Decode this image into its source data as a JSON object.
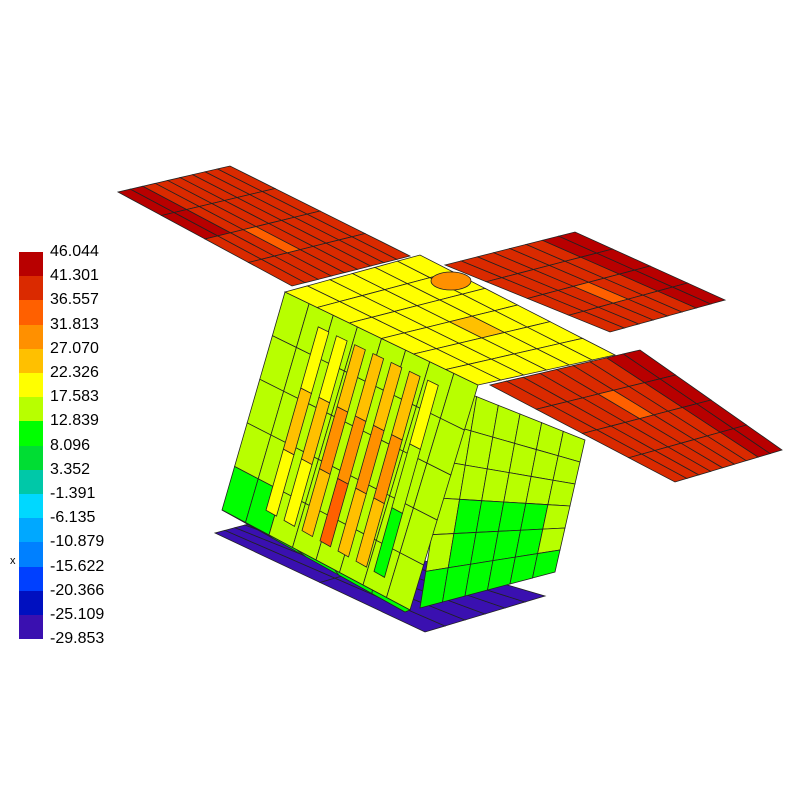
{
  "legend": {
    "labels": [
      "46.044",
      "41.301",
      "36.557",
      "31.813",
      "27.070",
      "22.326",
      "17.583",
      "12.839",
      "8.096",
      "3.352",
      "-1.391",
      "-6.135",
      "-10.879",
      "-15.622",
      "-20.366",
      "-25.109",
      "-29.853"
    ],
    "colors": [
      "#b80000",
      "#da2a00",
      "#ff6000",
      "#ff9000",
      "#ffc000",
      "#ffff00",
      "#b8ff00",
      "#00ff00",
      "#00dd33",
      "#00c8a8",
      "#00d8ff",
      "#00a8ff",
      "#0080ff",
      "#0040ff",
      "#0010c0",
      "#3a10b0"
    ],
    "axis_label": "x"
  }
}
